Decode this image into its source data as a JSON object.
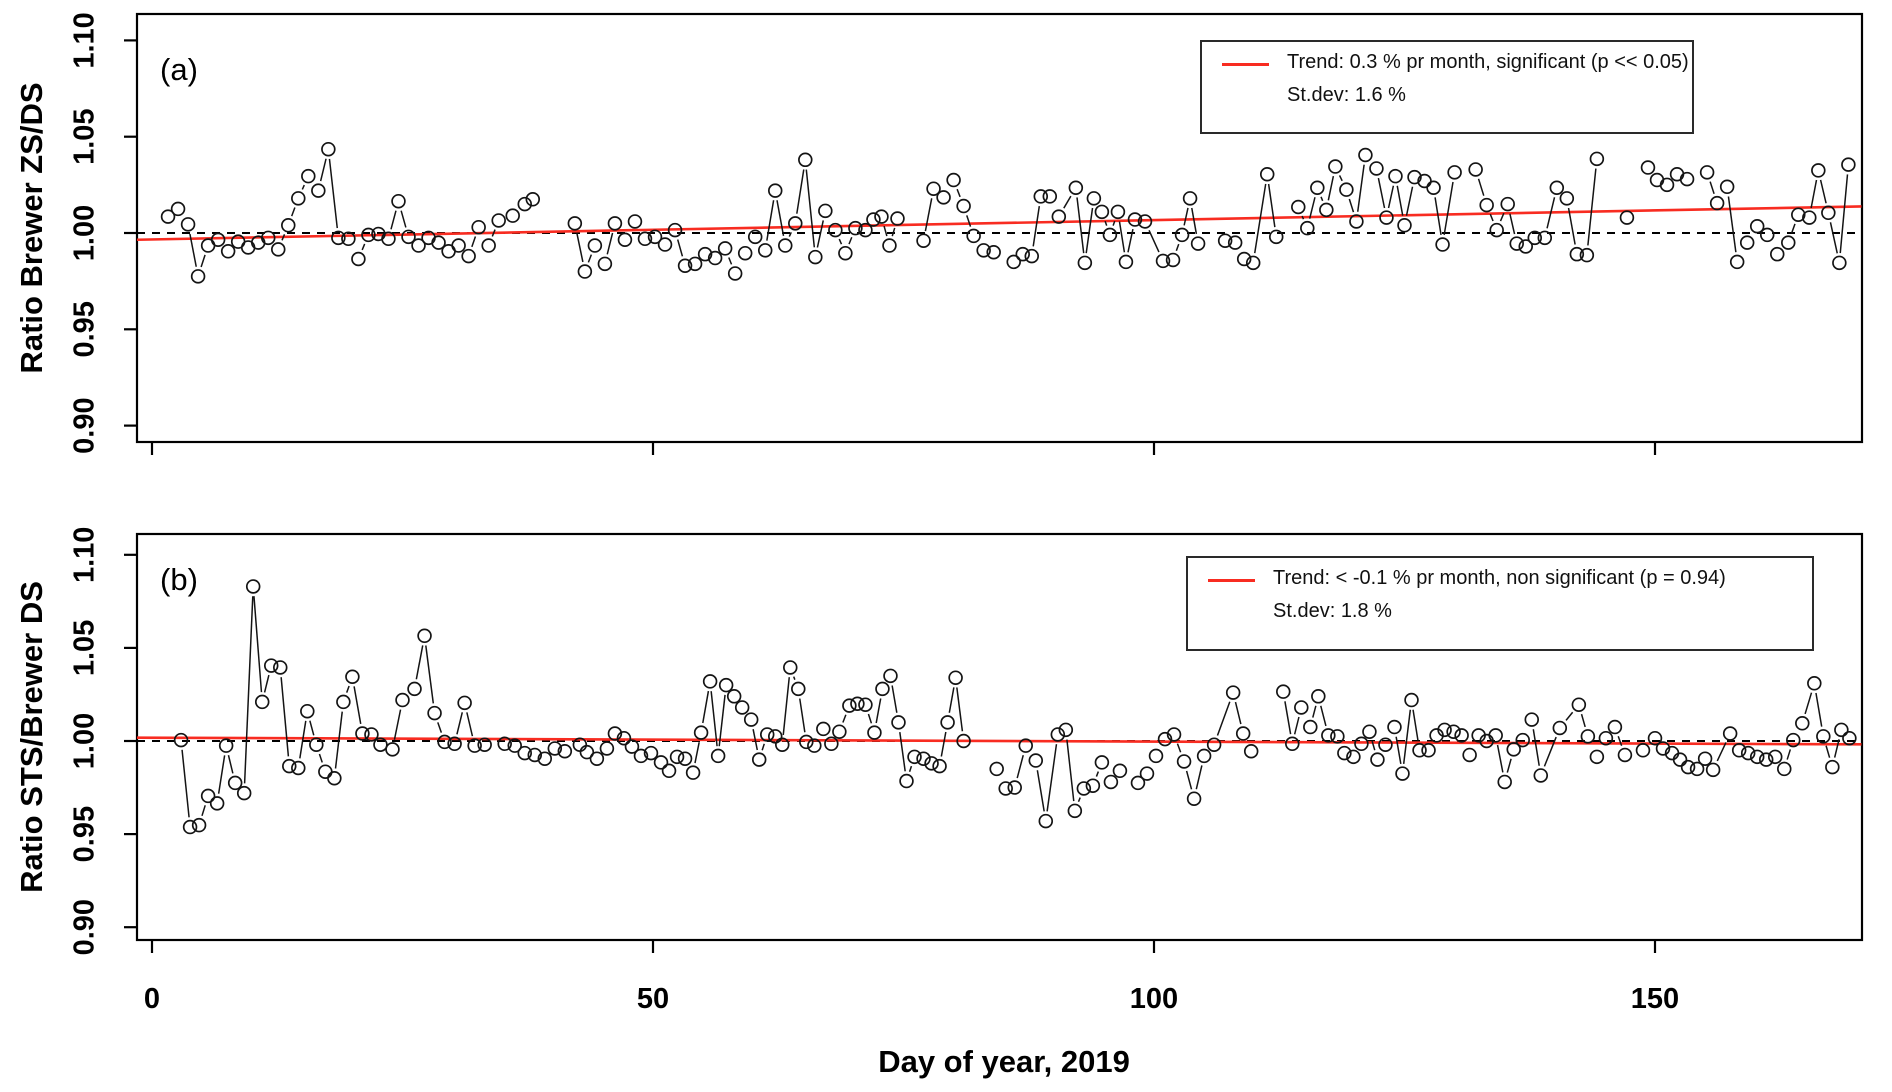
{
  "figure": {
    "panel_a_tag": "(a)",
    "panel_b_tag": "(b)",
    "x_axis_title": "Day of year, 2019"
  },
  "axes": {
    "x_tick_labels": [
      "0",
      "50",
      "100",
      "150"
    ],
    "x_tick_days": [
      0,
      50,
      100,
      150
    ],
    "y_tick_labels": [
      "0.90",
      "0.95",
      "1.00",
      "1.05",
      "1.10"
    ],
    "y_tick_values": [
      0.9,
      0.95,
      1.0,
      1.05,
      1.1
    ]
  },
  "colors": {
    "trend_red": "#f82c21",
    "point_black": "#141414",
    "reference_black": "#000000"
  },
  "chart_data": [
    {
      "type": "scatter",
      "panel": "a",
      "tag": "(a)",
      "ylabel": "Ratio Brewer ZS/DS",
      "xlabel": "Day of year, 2019",
      "xlim": [
        -2,
        171
      ],
      "ylim": [
        0.892,
        1.108
      ],
      "grid": false,
      "reference_line_y": 1.0,
      "legend_position": "top-right",
      "legend": {
        "line1": "Trend: 0.3 % pr month, significant (p << 0.05)",
        "line2": "St.dev: 1.6 %"
      },
      "trend": {
        "x0": -1.5,
        "y0": 0.9965,
        "x1": 170.6,
        "y1": 1.0138
      },
      "points": [
        [
          1.6,
          1.0085
        ],
        [
          2.6,
          1.0125
        ],
        [
          3.6,
          1.0045
        ],
        [
          4.6,
          0.9775
        ],
        [
          5.6,
          0.9935
        ],
        [
          6.6,
          0.9965
        ],
        [
          7.6,
          0.9905
        ],
        [
          8.6,
          0.9955
        ],
        [
          9.6,
          0.9925
        ],
        [
          10.6,
          0.995
        ],
        [
          11.6,
          0.9975
        ],
        [
          12.6,
          0.9915
        ],
        [
          13.6,
          1.004
        ],
        [
          14.6,
          1.018
        ],
        [
          15.6,
          1.0295
        ],
        [
          16.6,
          1.022
        ],
        [
          17.6,
          1.0435
        ],
        [
          18.6,
          0.9975
        ],
        [
          19.6,
          0.997
        ],
        [
          20.6,
          0.9865
        ],
        [
          21.6,
          0.999
        ],
        [
          22.6,
          0.9995
        ],
        [
          23.6,
          0.997
        ],
        [
          24.6,
          1.0165
        ],
        [
          25.6,
          0.998
        ],
        [
          26.6,
          0.9935
        ],
        [
          27.6,
          0.9975
        ],
        [
          28.6,
          0.995
        ],
        [
          29.6,
          0.9905
        ],
        [
          30.6,
          0.9935
        ],
        [
          31.6,
          0.988
        ],
        [
          32.6,
          1.003
        ],
        [
          33.6,
          0.9935
        ],
        [
          34.6,
          1.0065
        ],
        [
          36.0,
          1.009
        ],
        [
          37.2,
          1.015
        ],
        [
          38.0,
          1.0175
        ],
        [
          42.2,
          1.005
        ],
        [
          43.2,
          0.98
        ],
        [
          44.2,
          0.9935
        ],
        [
          45.2,
          0.984
        ],
        [
          46.2,
          1.005
        ],
        [
          47.2,
          0.9965
        ],
        [
          48.2,
          1.006
        ],
        [
          49.2,
          0.997
        ],
        [
          50.2,
          0.998
        ],
        [
          51.2,
          0.994
        ],
        [
          52.2,
          1.0015
        ],
        [
          53.2,
          0.983
        ],
        [
          54.2,
          0.984
        ],
        [
          55.2,
          0.989
        ],
        [
          56.2,
          0.987
        ],
        [
          57.2,
          0.992
        ],
        [
          58.2,
          0.979
        ],
        [
          59.2,
          0.9895
        ],
        [
          60.2,
          0.998
        ],
        [
          61.2,
          0.991
        ],
        [
          62.2,
          1.022
        ],
        [
          63.2,
          0.9935
        ],
        [
          64.2,
          1.005
        ],
        [
          65.2,
          1.038
        ],
        [
          66.2,
          0.9875
        ],
        [
          67.2,
          1.0115
        ],
        [
          68.2,
          1.0015
        ],
        [
          69.2,
          0.9895
        ],
        [
          70.2,
          1.0025
        ],
        [
          71.2,
          1.0015
        ],
        [
          72.0,
          1.007
        ],
        [
          72.8,
          1.0085
        ],
        [
          73.6,
          0.9935
        ],
        [
          74.4,
          1.0075
        ],
        [
          77.0,
          0.996
        ],
        [
          78.0,
          1.023
        ],
        [
          79.0,
          1.0185
        ],
        [
          80.0,
          1.0275
        ],
        [
          81.0,
          1.014
        ],
        [
          82.0,
          0.9985
        ],
        [
          83.0,
          0.991
        ],
        [
          84.0,
          0.99
        ],
        [
          86.0,
          0.985
        ],
        [
          86.9,
          0.989
        ],
        [
          87.8,
          0.988
        ],
        [
          88.7,
          1.019
        ],
        [
          89.6,
          1.019
        ],
        [
          90.5,
          1.0085
        ],
        [
          92.2,
          1.0235
        ],
        [
          93.1,
          0.9845
        ],
        [
          94.0,
          1.018
        ],
        [
          94.8,
          1.011
        ],
        [
          95.6,
          0.999
        ],
        [
          96.4,
          1.011
        ],
        [
          97.2,
          0.985
        ],
        [
          98.1,
          1.007
        ],
        [
          99.1,
          1.006
        ],
        [
          100.9,
          0.9855
        ],
        [
          101.9,
          0.986
        ],
        [
          102.8,
          0.999
        ],
        [
          103.6,
          1.018
        ],
        [
          104.4,
          0.9945
        ],
        [
          107.1,
          0.996
        ],
        [
          108.1,
          0.995
        ],
        [
          109.0,
          0.9865
        ],
        [
          109.9,
          0.9845
        ],
        [
          111.3,
          1.0305
        ],
        [
          112.2,
          0.998
        ],
        [
          114.4,
          1.0135
        ],
        [
          115.3,
          1.0025
        ],
        [
          116.3,
          1.0235
        ],
        [
          117.2,
          1.012
        ],
        [
          118.1,
          1.0345
        ],
        [
          119.2,
          1.0225
        ],
        [
          120.2,
          1.006
        ],
        [
          121.1,
          1.0405
        ],
        [
          122.2,
          1.0335
        ],
        [
          123.2,
          1.008
        ],
        [
          124.1,
          1.0295
        ],
        [
          125.0,
          1.004
        ],
        [
          126.0,
          1.029
        ],
        [
          127.0,
          1.027
        ],
        [
          127.9,
          1.0235
        ],
        [
          128.8,
          0.994
        ],
        [
          130.0,
          1.0315
        ],
        [
          132.1,
          1.033
        ],
        [
          133.2,
          1.0145
        ],
        [
          134.2,
          1.0015
        ],
        [
          135.3,
          1.015
        ],
        [
          136.2,
          0.9945
        ],
        [
          137.1,
          0.993
        ],
        [
          138.0,
          0.9975
        ],
        [
          139.0,
          0.9975
        ],
        [
          140.2,
          1.0235
        ],
        [
          141.2,
          1.018
        ],
        [
          142.2,
          0.989
        ],
        [
          143.2,
          0.9885
        ],
        [
          144.2,
          1.0385
        ],
        [
          147.2,
          1.008
        ],
        [
          149.3,
          1.034
        ],
        [
          150.2,
          1.0275
        ],
        [
          151.2,
          1.025
        ],
        [
          152.2,
          1.0305
        ],
        [
          153.2,
          1.028
        ],
        [
          155.2,
          1.0315
        ],
        [
          156.2,
          1.0155
        ],
        [
          157.2,
          1.024
        ],
        [
          158.2,
          0.985
        ],
        [
          159.2,
          0.995
        ],
        [
          160.2,
          1.0035
        ],
        [
          161.2,
          0.999
        ],
        [
          162.2,
          0.989
        ],
        [
          163.3,
          0.995
        ],
        [
          164.3,
          1.0095
        ],
        [
          165.4,
          1.008
        ],
        [
          166.3,
          1.0325
        ],
        [
          167.3,
          1.0105
        ],
        [
          168.4,
          0.9845
        ],
        [
          169.3,
          1.0355
        ]
      ]
    },
    {
      "type": "scatter",
      "panel": "b",
      "tag": "(b)",
      "ylabel": "Ratio STS/Brewer DS",
      "xlabel": "Day of year, 2019",
      "xlim": [
        -2,
        171
      ],
      "ylim": [
        0.892,
        1.108
      ],
      "grid": false,
      "reference_line_y": 1.0,
      "legend_position": "top-right",
      "legend": {
        "line1": "Trend: < -0.1 % pr month, non significant (p = 0.94)",
        "line2": "St.dev: 1.8 %"
      },
      "trend": {
        "x0": -1.5,
        "y0": 1.0018,
        "x1": 170.6,
        "y1": 0.9982
      },
      "points": [
        [
          2.9,
          1.0005
        ],
        [
          3.8,
          0.9538
        ],
        [
          4.7,
          0.9548
        ],
        [
          5.6,
          0.9705
        ],
        [
          6.5,
          0.9665
        ],
        [
          7.4,
          0.9975
        ],
        [
          8.3,
          0.9775
        ],
        [
          9.2,
          0.972
        ],
        [
          10.1,
          1.083
        ],
        [
          11.0,
          1.021
        ],
        [
          11.9,
          1.0405
        ],
        [
          12.8,
          1.0395
        ],
        [
          13.7,
          0.9865
        ],
        [
          14.6,
          0.9855
        ],
        [
          15.5,
          1.016
        ],
        [
          16.4,
          0.998
        ],
        [
          17.3,
          0.9835
        ],
        [
          18.2,
          0.98
        ],
        [
          19.1,
          1.021
        ],
        [
          20.0,
          1.0345
        ],
        [
          21.0,
          1.004
        ],
        [
          21.9,
          1.0035
        ],
        [
          22.8,
          0.998
        ],
        [
          24.0,
          0.9955
        ],
        [
          25.0,
          1.022
        ],
        [
          26.2,
          1.028
        ],
        [
          27.2,
          1.0565
        ],
        [
          28.2,
          1.015
        ],
        [
          29.2,
          0.9995
        ],
        [
          30.2,
          0.9985
        ],
        [
          31.2,
          1.0205
        ],
        [
          32.2,
          0.9975
        ],
        [
          33.2,
          0.998
        ],
        [
          35.2,
          0.9985
        ],
        [
          36.2,
          0.9975
        ],
        [
          37.2,
          0.9935
        ],
        [
          38.2,
          0.9925
        ],
        [
          39.2,
          0.9905
        ],
        [
          40.2,
          0.996
        ],
        [
          41.2,
          0.9945
        ],
        [
          42.7,
          0.998
        ],
        [
          43.4,
          0.994
        ],
        [
          44.4,
          0.9905
        ],
        [
          45.4,
          0.996
        ],
        [
          46.2,
          1.004
        ],
        [
          47.1,
          1.0015
        ],
        [
          47.9,
          0.997
        ],
        [
          48.8,
          0.992
        ],
        [
          49.8,
          0.9935
        ],
        [
          50.8,
          0.9885
        ],
        [
          51.6,
          0.984
        ],
        [
          52.4,
          0.9915
        ],
        [
          53.2,
          0.9905
        ],
        [
          54.0,
          0.983
        ],
        [
          54.8,
          1.0045
        ],
        [
          55.7,
          1.032
        ],
        [
          56.5,
          0.992
        ],
        [
          57.3,
          1.03
        ],
        [
          58.1,
          1.024
        ],
        [
          58.9,
          1.018
        ],
        [
          59.8,
          1.0115
        ],
        [
          60.6,
          0.99
        ],
        [
          61.4,
          1.0035
        ],
        [
          62.2,
          1.0025
        ],
        [
          62.9,
          0.998
        ],
        [
          63.7,
          1.0395
        ],
        [
          64.5,
          1.028
        ],
        [
          65.3,
          0.9995
        ],
        [
          66.1,
          0.9975
        ],
        [
          67.0,
          1.0065
        ],
        [
          67.8,
          0.9985
        ],
        [
          68.6,
          1.005
        ],
        [
          69.6,
          1.019
        ],
        [
          70.4,
          1.02
        ],
        [
          71.2,
          1.0195
        ],
        [
          72.1,
          1.0045
        ],
        [
          72.9,
          1.028
        ],
        [
          73.7,
          1.035
        ],
        [
          74.5,
          1.01
        ],
        [
          75.3,
          0.9785
        ],
        [
          76.1,
          0.9915
        ],
        [
          77.0,
          0.9905
        ],
        [
          77.8,
          0.988
        ],
        [
          78.6,
          0.9865
        ],
        [
          79.4,
          1.01
        ],
        [
          80.2,
          1.034
        ],
        [
          81.0,
          1.0
        ],
        [
          84.3,
          0.985
        ],
        [
          85.2,
          0.9745
        ],
        [
          86.1,
          0.975
        ],
        [
          87.2,
          0.9975
        ],
        [
          88.2,
          0.9895
        ],
        [
          89.2,
          0.957
        ],
        [
          90.4,
          1.0035
        ],
        [
          91.2,
          1.006
        ],
        [
          92.1,
          0.9625
        ],
        [
          93.0,
          0.9745
        ],
        [
          93.9,
          0.976
        ],
        [
          94.8,
          0.9885
        ],
        [
          95.7,
          0.978
        ],
        [
          96.6,
          0.984
        ],
        [
          98.4,
          0.9775
        ],
        [
          99.3,
          0.9825
        ],
        [
          100.2,
          0.992
        ],
        [
          101.1,
          1.001
        ],
        [
          102.0,
          1.0035
        ],
        [
          103.0,
          0.989
        ],
        [
          104.0,
          0.969
        ],
        [
          105.0,
          0.992
        ],
        [
          106.0,
          0.998
        ],
        [
          107.9,
          1.026
        ],
        [
          108.9,
          1.004
        ],
        [
          109.7,
          0.9945
        ],
        [
          112.9,
          1.0265
        ],
        [
          113.8,
          0.9985
        ],
        [
          114.7,
          1.018
        ],
        [
          115.6,
          1.0075
        ],
        [
          116.4,
          1.024
        ],
        [
          117.4,
          1.003
        ],
        [
          118.3,
          1.0025
        ],
        [
          119.0,
          0.9935
        ],
        [
          119.9,
          0.9915
        ],
        [
          120.7,
          0.9985
        ],
        [
          121.5,
          1.005
        ],
        [
          122.3,
          0.99
        ],
        [
          123.1,
          0.998
        ],
        [
          124.0,
          1.0075
        ],
        [
          124.8,
          0.9825
        ],
        [
          125.7,
          1.022
        ],
        [
          126.5,
          0.995
        ],
        [
          127.4,
          0.995
        ],
        [
          128.2,
          1.003
        ],
        [
          129.0,
          1.006
        ],
        [
          129.9,
          1.005
        ],
        [
          130.7,
          1.003
        ],
        [
          131.5,
          0.9925
        ],
        [
          132.4,
          1.003
        ],
        [
          133.2,
          1.0
        ],
        [
          134.1,
          1.003
        ],
        [
          135.0,
          0.978
        ],
        [
          135.9,
          0.9955
        ],
        [
          136.8,
          1.0005
        ],
        [
          137.7,
          1.0115
        ],
        [
          138.6,
          0.9815
        ],
        [
          140.5,
          1.007
        ],
        [
          142.4,
          1.0195
        ],
        [
          143.3,
          1.0025
        ],
        [
          144.2,
          0.9915
        ],
        [
          145.1,
          1.0015
        ],
        [
          146.0,
          1.0075
        ],
        [
          147.0,
          0.9925
        ],
        [
          148.8,
          0.995
        ],
        [
          150.0,
          1.0015
        ],
        [
          150.8,
          0.996
        ],
        [
          151.7,
          0.9935
        ],
        [
          152.5,
          0.99
        ],
        [
          153.3,
          0.986
        ],
        [
          154.2,
          0.985
        ],
        [
          155.0,
          0.9905
        ],
        [
          155.8,
          0.9845
        ],
        [
          157.5,
          1.004
        ],
        [
          158.4,
          0.995
        ],
        [
          159.3,
          0.9935
        ],
        [
          160.2,
          0.9915
        ],
        [
          161.1,
          0.99
        ],
        [
          162.0,
          0.9915
        ],
        [
          162.9,
          0.985
        ],
        [
          163.8,
          1.0005
        ],
        [
          164.7,
          1.0095
        ],
        [
          165.9,
          1.031
        ],
        [
          166.8,
          1.0025
        ],
        [
          167.7,
          0.986
        ],
        [
          168.6,
          1.006
        ],
        [
          169.4,
          1.0015
        ]
      ]
    }
  ]
}
